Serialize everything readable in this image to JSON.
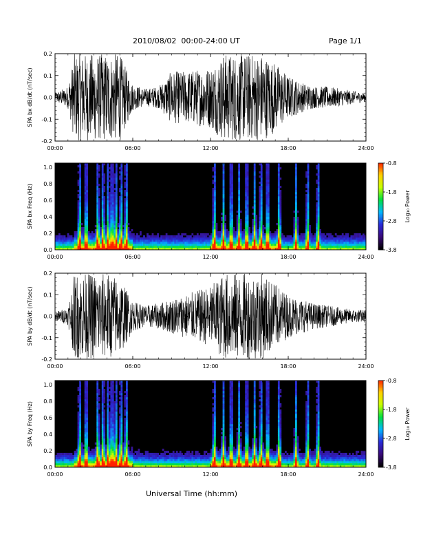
{
  "header": {
    "title": "2010/08/02  00:00-24:00 UT",
    "page": "Page 1/1"
  },
  "footer": {
    "xlabel": "Universal Time (hh:mm)"
  },
  "colors": {
    "trace": "#000000",
    "colorbar": [
      "#000000",
      "#3a0a78",
      "#2a2ad8",
      "#00b8ff",
      "#00e040",
      "#c8ff00",
      "#ffd000",
      "#ff2000"
    ]
  },
  "chart_data": [
    {
      "type": "line",
      "title": "",
      "ylabel": "SPA bx dB/dt (nT/sec)",
      "xlabel": "",
      "xlim": [
        "00:00",
        "24:00"
      ],
      "xticks": [
        "00:00",
        "06:00",
        "12:00",
        "18:00",
        "24:00"
      ],
      "ylim": [
        -0.2,
        0.2
      ],
      "yticks": [
        "-0.2",
        "-0.1",
        "0.0",
        "0.1",
        "0.2"
      ],
      "series": [
        {
          "x_hours": [
            0,
            1,
            1.5,
            2,
            3,
            4,
            5,
            6,
            7,
            8,
            9,
            10,
            11,
            12,
            13,
            14,
            15,
            16,
            17,
            18,
            19,
            20,
            21,
            22,
            23,
            24
          ],
          "amplitude": [
            0.02,
            0.05,
            0.2,
            0.2,
            0.2,
            0.2,
            0.2,
            0.06,
            0.04,
            0.05,
            0.12,
            0.12,
            0.13,
            0.14,
            0.2,
            0.2,
            0.2,
            0.2,
            0.16,
            0.1,
            0.07,
            0.05,
            0.05,
            0.04,
            0.03,
            0.02
          ]
        }
      ]
    },
    {
      "type": "heatmap",
      "title": "",
      "ylabel": "SPA bx Freq (Hz)",
      "xlabel": "",
      "xlim": [
        "00:00",
        "24:00"
      ],
      "xticks": [
        "00:00",
        "06:00",
        "12:00",
        "18:00",
        "24:00"
      ],
      "ylim": [
        0.0,
        1.05
      ],
      "yticks": [
        "0.0",
        "0.2",
        "0.4",
        "0.6",
        "0.8",
        "1.0"
      ],
      "colorbar": {
        "label": "Log₁₀ Power",
        "range": [
          -3.8,
          -0.8
        ],
        "ticks": [
          "-0.8",
          "-1.8",
          "-2.8",
          "-3.8"
        ]
      },
      "activity_hours": [
        1.9,
        2.4,
        3.3,
        3.7,
        4.1,
        4.4,
        4.7,
        5.1,
        5.5,
        12.3,
        13.0,
        13.6,
        14.2,
        14.8,
        15.4,
        15.9,
        16.4,
        17.3,
        18.6,
        19.5,
        20.3
      ],
      "peak_power": -0.8,
      "background_power": -3.8
    },
    {
      "type": "line",
      "title": "",
      "ylabel": "SPA by dB/dt (nT/sec)",
      "xlabel": "",
      "xlim": [
        "00:00",
        "24:00"
      ],
      "xticks": [
        "00:00",
        "06:00",
        "12:00",
        "18:00",
        "24:00"
      ],
      "ylim": [
        -0.2,
        0.2
      ],
      "yticks": [
        "-0.2",
        "-0.1",
        "0.0",
        "0.1",
        "0.2"
      ],
      "series": [
        {
          "x_hours": [
            0,
            1,
            1.5,
            2,
            3,
            4,
            5,
            6,
            7,
            8,
            9,
            10,
            11,
            12,
            13,
            14,
            15,
            16,
            17,
            18,
            19,
            20,
            21,
            22,
            23,
            24
          ],
          "amplitude": [
            0.02,
            0.04,
            0.2,
            0.2,
            0.2,
            0.2,
            0.18,
            0.07,
            0.05,
            0.06,
            0.08,
            0.1,
            0.12,
            0.14,
            0.2,
            0.2,
            0.2,
            0.2,
            0.15,
            0.1,
            0.08,
            0.06,
            0.05,
            0.04,
            0.03,
            0.03
          ]
        }
      ]
    },
    {
      "type": "heatmap",
      "title": "",
      "ylabel": "SPA by Freq (Hz)",
      "xlabel": "",
      "xlim": [
        "00:00",
        "24:00"
      ],
      "xticks": [
        "00:00",
        "06:00",
        "12:00",
        "18:00",
        "24:00"
      ],
      "ylim": [
        0.0,
        1.05
      ],
      "yticks": [
        "0.0",
        "0.2",
        "0.4",
        "0.6",
        "0.8",
        "1.0"
      ],
      "colorbar": {
        "label": "Log₁₀ Power",
        "range": [
          -3.8,
          -0.8
        ],
        "ticks": [
          "-0.8",
          "-1.8",
          "-2.8",
          "-3.8"
        ]
      },
      "activity_hours": [
        1.9,
        2.4,
        3.3,
        3.7,
        4.1,
        4.4,
        4.7,
        5.1,
        5.5,
        12.3,
        13.0,
        13.6,
        14.2,
        14.8,
        15.4,
        15.9,
        16.4,
        17.3,
        18.6,
        19.5,
        20.3
      ],
      "peak_power": -0.8,
      "background_power": -3.8
    }
  ]
}
